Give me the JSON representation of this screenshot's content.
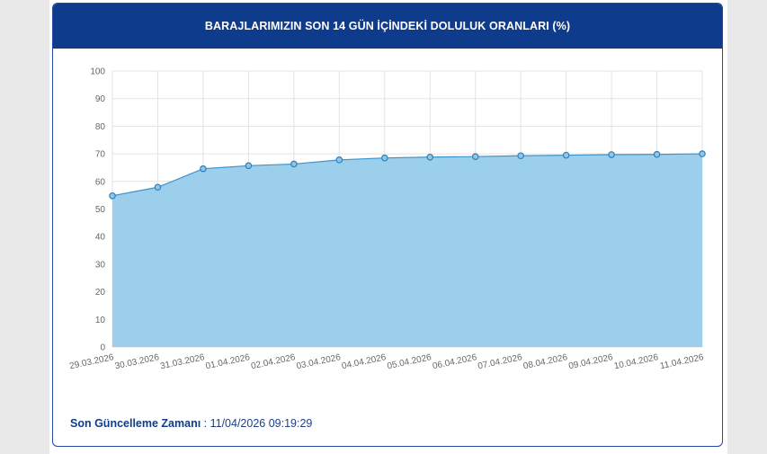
{
  "chart_data": {
    "type": "area",
    "title": "BARAJLARIMIZIN SON 14 GÜN İÇİNDEKİ DOLULUK ORANLARI (%)",
    "categories": [
      "29.03.2026",
      "30.03.2026",
      "31.03.2026",
      "01.04.2026",
      "02.04.2026",
      "03.04.2026",
      "04.04.2026",
      "05.04.2026",
      "06.04.2026",
      "07.04.2026",
      "08.04.2026",
      "09.04.2026",
      "10.04.2026",
      "11.04.2026"
    ],
    "values": [
      54.8,
      57.9,
      64.6,
      65.7,
      66.3,
      67.8,
      68.5,
      68.8,
      69.0,
      69.3,
      69.5,
      69.7,
      69.8,
      70.0
    ],
    "yticks": [
      "0",
      "10",
      "20",
      "30",
      "40",
      "50",
      "60",
      "70",
      "80",
      "90",
      "100"
    ],
    "ylim": [
      0,
      100
    ],
    "grid": true,
    "colors": {
      "fill": "#9ccfec",
      "line": "#3f93c8",
      "marker": "#2f7fb9",
      "header": "#0f3b8c"
    }
  },
  "footer": {
    "label": "Son Güncelleme Zamanı",
    "separator": " : ",
    "value": "11/04/2026 09:19:29"
  }
}
